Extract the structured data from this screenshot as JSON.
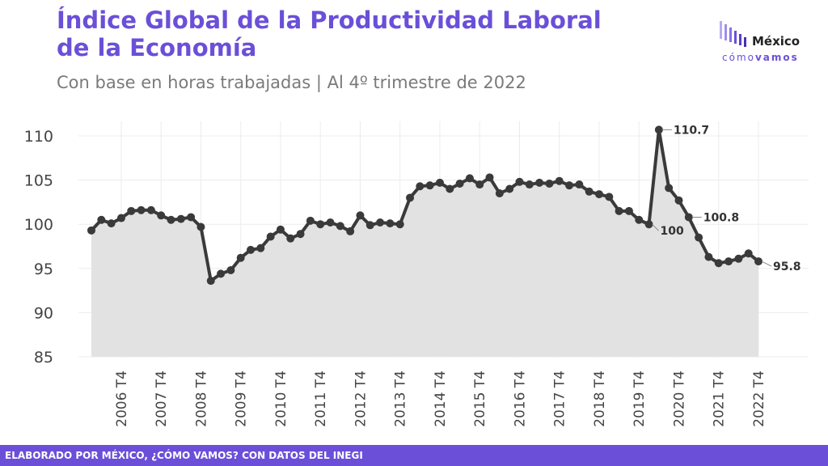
{
  "header": {
    "title_line1": "Índice Global de la Productividad Laboral",
    "title_line2": "de la Economía",
    "subtitle": "Con base en horas trabajadas | Al 4º trimestre de 2022"
  },
  "logo": {
    "main": "México",
    "sub_light": "cómo",
    "sub_bold": "vamos"
  },
  "footer": {
    "text": "ELABORADO POR MÉXICO, ¿CÓMO VAMOS? CON DATOS DEL INEGI"
  },
  "colors": {
    "accent": "#6b4fd8",
    "line": "#3a3a3a",
    "area": "#e2e2e2",
    "grid": "#ececec"
  },
  "chart_data": {
    "type": "area",
    "title": "Índice Global de la Productividad Laboral de la Economía",
    "ylim": [
      85,
      112
    ],
    "yticks": [
      85,
      90,
      95,
      100,
      105,
      110
    ],
    "grid": true,
    "x_tick_labels": [
      "2006 T4",
      "2007 T4",
      "2008 T4",
      "2009 T4",
      "2010 T4",
      "2011 T4",
      "2012 T4",
      "2013 T4",
      "2014 T4",
      "2015 T4",
      "2016 T4",
      "2017 T4",
      "2018 T4",
      "2019 T4",
      "2020 T4",
      "2021 T4",
      "2022 T4"
    ],
    "x_tick_indices": [
      3,
      7,
      11,
      15,
      19,
      23,
      27,
      31,
      35,
      39,
      43,
      47,
      51,
      55,
      59,
      63,
      67
    ],
    "values": [
      99.3,
      100.5,
      100.1,
      100.7,
      101.5,
      101.6,
      101.6,
      101.0,
      100.5,
      100.6,
      100.8,
      99.7,
      93.6,
      94.4,
      94.8,
      96.2,
      97.1,
      97.3,
      98.6,
      99.4,
      98.4,
      98.9,
      100.4,
      100.0,
      100.2,
      99.8,
      99.2,
      101.0,
      99.9,
      100.2,
      100.1,
      100.0,
      103.0,
      104.3,
      104.4,
      104.7,
      104.0,
      104.6,
      105.2,
      104.5,
      105.3,
      103.5,
      104.0,
      104.8,
      104.5,
      104.7,
      104.6,
      104.9,
      104.4,
      104.5,
      103.7,
      103.4,
      103.1,
      101.5,
      101.5,
      100.5,
      100.0,
      110.7,
      104.1,
      102.7,
      100.8,
      98.5,
      96.3,
      95.6,
      95.8,
      96.1,
      96.7,
      95.8
    ],
    "annotations": [
      {
        "index": 57,
        "label": "110.7"
      },
      {
        "index": 56,
        "label": "100"
      },
      {
        "index": 60,
        "label": "100.8"
      },
      {
        "index": 67,
        "label": "95.8"
      }
    ]
  }
}
